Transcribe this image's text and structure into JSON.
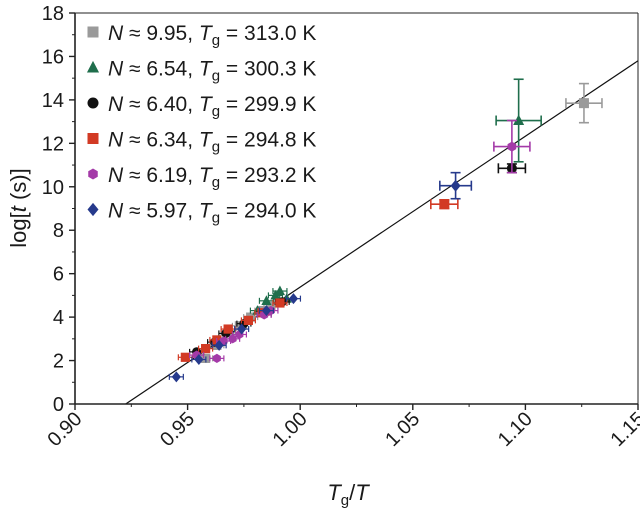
{
  "chart_data": {
    "type": "scatter",
    "xlabel": {
      "main": "T",
      "sub": "g",
      "rest": "/T"
    },
    "ylabel": {
      "main": "log[",
      "italic": "t",
      "rest": " (s)]"
    },
    "xlim": [
      0.9,
      1.15
    ],
    "ylim": [
      0,
      18
    ],
    "xticks": [
      "0.90",
      "0.95",
      "1.00",
      "1.05",
      "1.10",
      "1.15"
    ],
    "yticks": [
      "0",
      "2",
      "4",
      "6",
      "8",
      "10",
      "12",
      "14",
      "16",
      "18"
    ],
    "grid": false,
    "legend_position": "top-left",
    "fit_line": {
      "x": [
        0.9225,
        1.15
      ],
      "y": [
        0,
        15.8
      ]
    },
    "series": [
      {
        "legend": {
          "N": "9.95",
          "Tg": "313.0 K"
        },
        "color": "#9a9a9a",
        "marker": "square",
        "points": [
          {
            "x": 0.958,
            "y": 2.1
          },
          {
            "x": 0.963,
            "y": 2.7
          },
          {
            "x": 0.968,
            "y": 3.3
          },
          {
            "x": 0.973,
            "y": 3.6
          },
          {
            "x": 0.978,
            "y": 4.0
          },
          {
            "x": 0.983,
            "y": 4.3
          },
          {
            "x": 0.987,
            "y": 4.5
          },
          {
            "x": 1.126,
            "y": 13.85,
            "xerr": 0.008,
            "yerr": 0.9
          }
        ]
      },
      {
        "legend": {
          "N": "6.54",
          "Tg": "300.3 K"
        },
        "color": "#1f6e4c",
        "marker": "triangle",
        "points": [
          {
            "x": 0.981,
            "y": 4.3
          },
          {
            "x": 0.985,
            "y": 4.75
          },
          {
            "x": 0.989,
            "y": 5.0
          },
          {
            "x": 0.991,
            "y": 5.2
          },
          {
            "x": 0.994,
            "y": 4.85
          },
          {
            "x": 1.097,
            "y": 13.05,
            "xerr": 0.01,
            "yerr": 1.9
          }
        ]
      },
      {
        "legend": {
          "N": "6.40",
          "Tg": "299.9 K"
        },
        "color": "#111111",
        "marker": "circle",
        "points": [
          {
            "x": 0.954,
            "y": 2.4
          },
          {
            "x": 0.962,
            "y": 2.85
          },
          {
            "x": 0.967,
            "y": 3.25
          },
          {
            "x": 0.975,
            "y": 3.7
          },
          {
            "x": 0.984,
            "y": 4.15
          },
          {
            "x": 0.992,
            "y": 4.7
          },
          {
            "x": 1.094,
            "y": 10.85,
            "xerr": 0.006,
            "yerr": 0.2
          }
        ]
      },
      {
        "legend": {
          "N": "6.34",
          "Tg": "294.8 K"
        },
        "color": "#d23a24",
        "marker": "square",
        "points": [
          {
            "x": 0.949,
            "y": 2.15
          },
          {
            "x": 0.958,
            "y": 2.55
          },
          {
            "x": 0.963,
            "y": 2.95
          },
          {
            "x": 0.968,
            "y": 3.45
          },
          {
            "x": 0.977,
            "y": 3.85
          },
          {
            "x": 0.983,
            "y": 4.2
          },
          {
            "x": 0.991,
            "y": 4.65
          },
          {
            "x": 1.064,
            "y": 9.2,
            "xerr": 0.006,
            "yerr": 0.2
          }
        ]
      },
      {
        "legend": {
          "N": "6.19",
          "Tg": "293.2 K"
        },
        "color": "#a43aa8",
        "marker": "hexagon",
        "points": [
          {
            "x": 0.954,
            "y": 2.25
          },
          {
            "x": 0.963,
            "y": 2.1
          },
          {
            "x": 0.966,
            "y": 2.9
          },
          {
            "x": 0.97,
            "y": 3.0
          },
          {
            "x": 0.973,
            "y": 3.2
          },
          {
            "x": 0.984,
            "y": 4.1
          },
          {
            "x": 0.987,
            "y": 4.3
          },
          {
            "x": 1.094,
            "y": 11.85,
            "xerr": 0.008,
            "yerr": 1.2
          }
        ]
      },
      {
        "legend": {
          "N": "5.97",
          "Tg": "294.0 K"
        },
        "color": "#263a8c",
        "marker": "diamond",
        "points": [
          {
            "x": 0.945,
            "y": 1.25
          },
          {
            "x": 0.955,
            "y": 2.05
          },
          {
            "x": 0.964,
            "y": 2.7
          },
          {
            "x": 0.974,
            "y": 3.45
          },
          {
            "x": 0.985,
            "y": 4.3
          },
          {
            "x": 0.997,
            "y": 4.85
          },
          {
            "x": 1.069,
            "y": 10.05,
            "xerr": 0.007,
            "yerr": 0.6
          }
        ]
      }
    ]
  }
}
